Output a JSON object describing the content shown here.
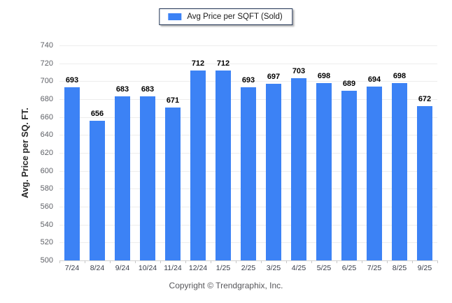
{
  "legend": {
    "label": "Avg Price per SQFT (Sold)",
    "swatch_color": "#3c82f5"
  },
  "footer": {
    "copyright": "Copyright © Trendgraphix, Inc."
  },
  "colors": {
    "bar": "#3c82f5",
    "gridline": "#ededed",
    "axis_line": "#d2d2d2",
    "value_label": "#000000",
    "y_tick_label": "#5f6167",
    "x_tick_label": "#363b47"
  },
  "chart_data": {
    "type": "bar",
    "title": "",
    "xlabel": "",
    "ylabel": "Avg. Price per SQ. FT.",
    "categories": [
      "7/24",
      "8/24",
      "9/24",
      "10/24",
      "11/24",
      "12/24",
      "1/25",
      "2/25",
      "3/25",
      "4/25",
      "5/25",
      "6/25",
      "7/25",
      "8/25",
      "9/25"
    ],
    "series": [
      {
        "name": "Avg Price per SQFT (Sold)",
        "color": "#3c82f5",
        "values": [
          693,
          656,
          683,
          683,
          671,
          712,
          712,
          693,
          697,
          703,
          698,
          689,
          694,
          698,
          672
        ]
      }
    ],
    "ylim": [
      500,
      740
    ],
    "ytick_step": 20,
    "grid": "horizontal",
    "legend_position": "top-center",
    "value_labels": "above-bars"
  }
}
